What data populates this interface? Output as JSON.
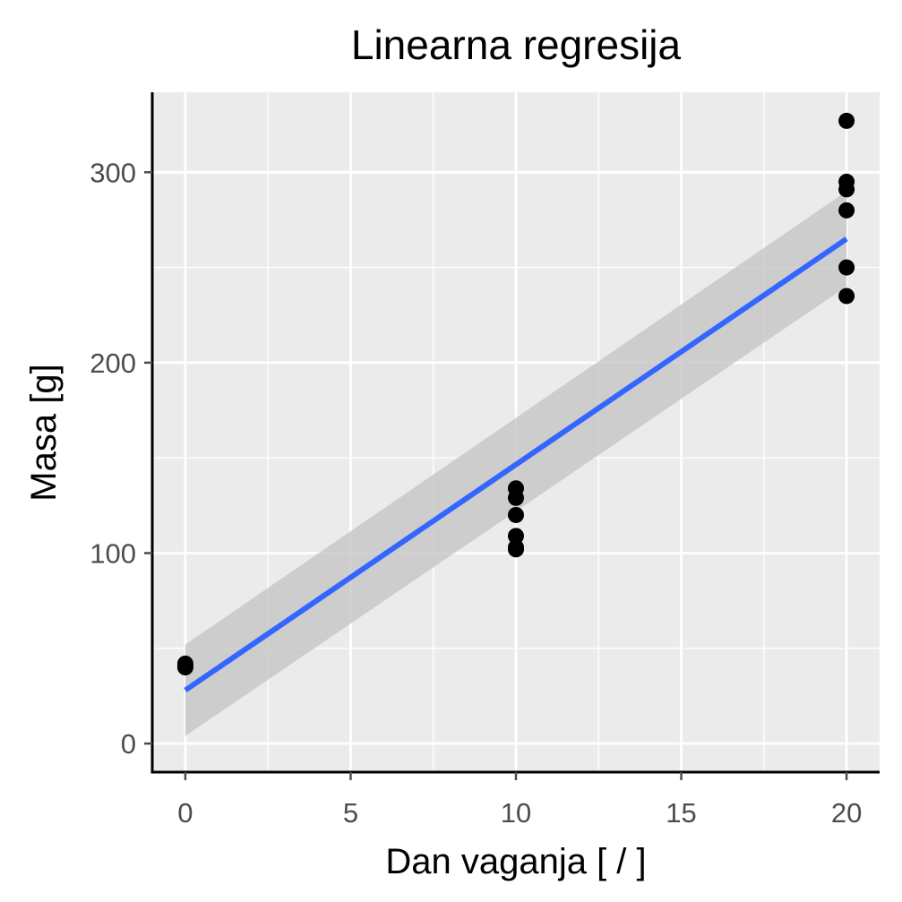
{
  "chart_data": {
    "type": "scatter",
    "title": "Linearna regresija",
    "xlabel": "Dan vaganja [ / ]",
    "ylabel": "Masa [g]",
    "xlim": [
      -1,
      21
    ],
    "ylim": [
      -15,
      342
    ],
    "x_ticks": [
      0,
      5,
      10,
      15,
      20
    ],
    "x_tick_labels": [
      "0",
      "5",
      "10",
      "15",
      "20"
    ],
    "y_ticks": [
      0,
      100,
      200,
      300
    ],
    "y_tick_labels": [
      "0",
      "100",
      "200",
      "300"
    ],
    "grid": true,
    "legend": "none",
    "points": [
      {
        "x": 0,
        "y": 42
      },
      {
        "x": 0,
        "y": 41
      },
      {
        "x": 0,
        "y": 40
      },
      {
        "x": 10,
        "y": 134
      },
      {
        "x": 10,
        "y": 129
      },
      {
        "x": 10,
        "y": 120
      },
      {
        "x": 10,
        "y": 109
      },
      {
        "x": 10,
        "y": 103
      },
      {
        "x": 10,
        "y": 102
      },
      {
        "x": 20,
        "y": 327
      },
      {
        "x": 20,
        "y": 295
      },
      {
        "x": 20,
        "y": 291
      },
      {
        "x": 20,
        "y": 280
      },
      {
        "x": 20,
        "y": 250
      },
      {
        "x": 20,
        "y": 235
      }
    ],
    "regression": {
      "x": [
        0,
        20
      ],
      "y": [
        28,
        265
      ],
      "ci_lower": [
        4,
        240
      ],
      "ci_upper": [
        52,
        290
      ]
    },
    "colors": {
      "panel": "#ebebeb",
      "grid": "#ffffff",
      "point": "#000000",
      "line": "#3366ff",
      "ribbon": "#c6c6c6",
      "tick_text": "#4d4d4d",
      "axis": "#000000"
    }
  }
}
